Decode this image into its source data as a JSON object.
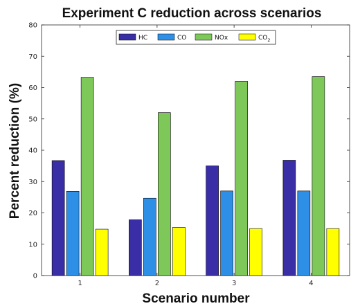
{
  "chart_data": {
    "type": "bar",
    "title": "Experiment C reduction across scenarios",
    "xlabel": "Scenario number",
    "ylabel": "Percent reduction (%)",
    "categories": [
      "1",
      "2",
      "3",
      "4"
    ],
    "ylim": [
      0,
      80
    ],
    "yticks": [
      "0",
      "10",
      "20",
      "30",
      "40",
      "50",
      "60",
      "70",
      "80"
    ],
    "grid": false,
    "legend_position": "top-center",
    "series": [
      {
        "name": "HC",
        "legend_main": "HC",
        "legend_sub": "",
        "color": "#3a2ea6",
        "values": [
          36.7,
          17.8,
          35.0,
          36.8
        ]
      },
      {
        "name": "CO",
        "legend_main": "CO",
        "legend_sub": "",
        "color": "#2e8fe6",
        "values": [
          26.9,
          24.7,
          27.0,
          27.0
        ]
      },
      {
        "name": "NOx",
        "legend_main": "NOx",
        "legend_sub": "",
        "color": "#7ec85a",
        "values": [
          63.3,
          52.0,
          62.0,
          63.5
        ]
      },
      {
        "name": "CO2",
        "legend_main": "CO",
        "legend_sub": "2",
        "color": "#ffff00",
        "values": [
          14.8,
          15.4,
          15.0,
          15.0
        ]
      }
    ]
  }
}
